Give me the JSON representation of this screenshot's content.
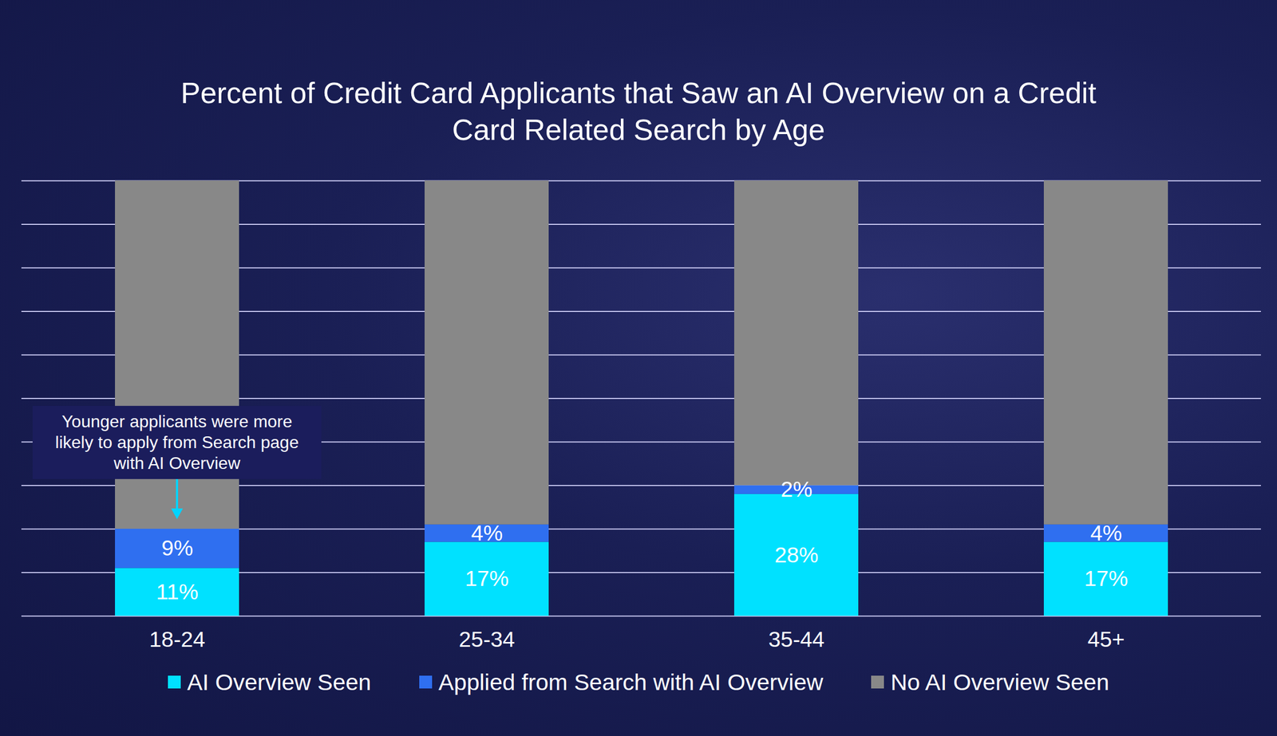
{
  "chart_data": {
    "type": "bar",
    "title": "Percent of Credit Card Applicants that Saw an AI Overview on a Credit Card Related Search by Age",
    "categories": [
      "18-24",
      "25-34",
      "35-44",
      "45+"
    ],
    "series": [
      {
        "name": "AI Overview Seen",
        "color": "#00e1ff",
        "values": [
          11,
          17,
          28,
          17
        ],
        "value_labels": [
          "11%",
          "17%",
          "28%",
          "17%"
        ]
      },
      {
        "name": "Applied from Search with AI Overview",
        "color": "#2f6ff0",
        "values": [
          9,
          4,
          2,
          4
        ],
        "value_labels": [
          "9%",
          "4%",
          "2%",
          "4%"
        ]
      },
      {
        "name": "No AI Overview Seen",
        "color": "#888888",
        "values": [
          80,
          79,
          70,
          79
        ],
        "data_labels": false
      }
    ],
    "stacked": true,
    "data_labels": true,
    "ylim": [
      0,
      100
    ],
    "yticks": [
      0,
      10,
      20,
      30,
      40,
      50,
      60,
      70,
      80,
      90,
      100
    ],
    "grid": true,
    "tick_labels": "x",
    "legend": "bottom",
    "annotations": [
      {
        "text": "Younger applicants were more likely to apply from Search page with AI Overview",
        "category": "18-24"
      }
    ]
  }
}
